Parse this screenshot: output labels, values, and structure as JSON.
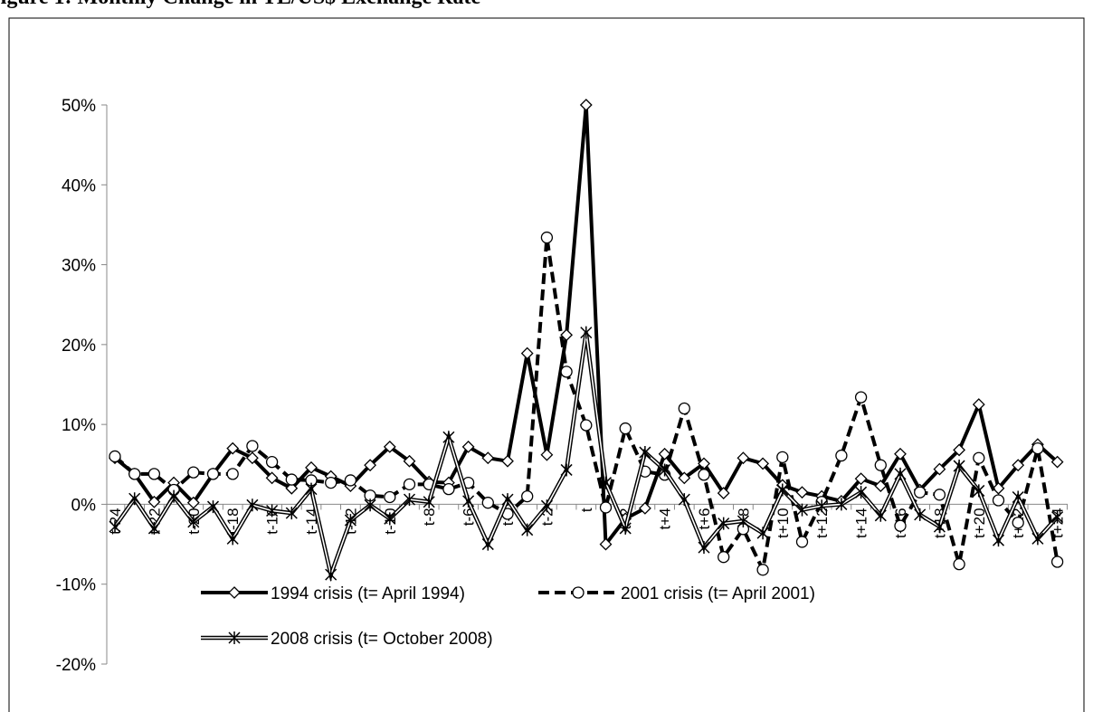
{
  "chart_data": {
    "type": "line",
    "title": "Figure 1: Monthly Change in TL/US$ Exchange Rate",
    "categories": [
      "t-24",
      null,
      "t-22",
      null,
      "t-20",
      null,
      "t-18",
      null,
      "t-16",
      null,
      "t-14",
      null,
      "t-12",
      null,
      "t-10",
      null,
      "t-8",
      null,
      "t-6",
      null,
      "t-4",
      null,
      "t-2",
      null,
      "t",
      null,
      "t+2",
      null,
      "t+4",
      null,
      "t+6",
      null,
      "t+8",
      null,
      "t+10",
      null,
      "t+12",
      null,
      "t+14",
      null,
      "t+16",
      null,
      "t+18",
      null,
      "t+20",
      null,
      "t+22",
      null,
      "t+24"
    ],
    "ylim": [
      -20,
      50
    ],
    "yticks": [
      {
        "value": -20,
        "label": "-20%"
      },
      {
        "value": -10,
        "label": "-10%"
      },
      {
        "value": 0,
        "label": "0%"
      },
      {
        "value": 10,
        "label": "10%"
      },
      {
        "value": 20,
        "label": "20%"
      },
      {
        "value": 30,
        "label": "30%"
      },
      {
        "value": 40,
        "label": "40%"
      },
      {
        "value": 50,
        "label": "50%"
      }
    ],
    "series": [
      {
        "name": "1994 crisis (t= April 1994)",
        "color": "#000000",
        "line_style": "solid",
        "marker": "diamond",
        "values": [
          5.8,
          3.8,
          0.3,
          2.7,
          0.2,
          3.8,
          7.0,
          5.8,
          3.3,
          2.0,
          4.6,
          3.5,
          2.3,
          4.9,
          7.2,
          5.4,
          2.8,
          2.7,
          7.2,
          5.8,
          5.4,
          18.9,
          6.2,
          21.2,
          50,
          -5.0,
          -1.8,
          -0.5,
          6.3,
          3.3,
          5.1,
          1.4,
          5.8,
          5.1,
          2.4,
          1.5,
          1.0,
          0.4,
          3.2,
          2.3,
          6.3,
          1.8,
          4.4,
          6.8,
          12.5,
          2.0,
          4.9,
          7.5,
          5.3
        ]
      },
      {
        "name": "2001 crisis (t= April 2001)",
        "color": "#000000",
        "line_style": "dashed",
        "marker": "circle",
        "values": [
          6.0,
          3.8,
          3.8,
          1.8,
          4.0,
          3.8,
          3.8,
          7.3,
          5.3,
          3.1,
          3.0,
          2.7,
          3.0,
          1.1,
          0.9,
          2.5,
          2.5,
          1.9,
          2.7,
          0.2,
          -1.2,
          1.0,
          33.4,
          16.6,
          9.9,
          -0.4,
          9.5,
          4.1,
          3.7,
          12.0,
          3.7,
          -6.6,
          -3.1,
          -8.2,
          5.9,
          -4.7,
          0.3,
          6.1,
          13.4,
          4.9,
          -2.7,
          1.5,
          1.2,
          -7.5,
          5.8,
          0.5,
          -2.3,
          7.0,
          -7.2
        ]
      },
      {
        "name": "2008 crisis (t= October 2008)",
        "color": "#000000",
        "line_style": "double",
        "marker": "star",
        "values": [
          -2.8,
          0.7,
          -3.0,
          1.0,
          -2.2,
          -0.3,
          -4.3,
          -0.1,
          -0.8,
          -1.1,
          1.9,
          -8.8,
          -2.0,
          -0.1,
          -1.8,
          0.6,
          0.3,
          8.4,
          0.4,
          -5.0,
          0.6,
          -3.2,
          -0.2,
          4.3,
          21.5,
          2.7,
          -3.0,
          6.5,
          4.3,
          0.6,
          -5.4,
          -2.4,
          -2.1,
          -3.6,
          1.8,
          -0.7,
          -0.2,
          0.0,
          1.5,
          -1.4,
          3.8,
          -1.3,
          -2.8,
          4.8,
          1.7,
          -4.5,
          0.9,
          -4.3,
          -1.6
        ]
      }
    ]
  }
}
